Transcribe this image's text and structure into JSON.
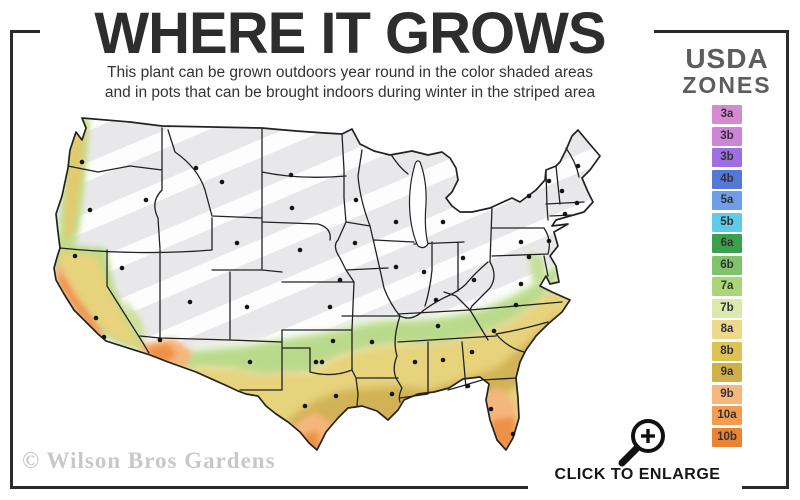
{
  "header": {
    "title": "WHERE IT GROWS",
    "subtitle_line1": "This plant can be grown outdoors year round in the color shaded areas",
    "subtitle_line2": "and in pots that can be brought indoors during winter in the striped area"
  },
  "legend": {
    "title_line1": "USDA",
    "title_line2": "ZONES",
    "zones": [
      {
        "label": "3a",
        "color": "#d489d0"
      },
      {
        "label": "3b",
        "color": "#cd85da"
      },
      {
        "label": "3b",
        "color": "#9e6fe2"
      },
      {
        "label": "4b",
        "color": "#5478d8"
      },
      {
        "label": "5a",
        "color": "#6f9de8"
      },
      {
        "label": "5b",
        "color": "#5fcbe8"
      },
      {
        "label": "6a",
        "color": "#3aa04b"
      },
      {
        "label": "6b",
        "color": "#7fc46d"
      },
      {
        "label": "7a",
        "color": "#abd678"
      },
      {
        "label": "7b",
        "color": "#dce9ae"
      },
      {
        "label": "8a",
        "color": "#eed88c"
      },
      {
        "label": "8b",
        "color": "#dfc254"
      },
      {
        "label": "9a",
        "color": "#cfb148"
      },
      {
        "label": "9b",
        "color": "#f6b77e"
      },
      {
        "label": "10a",
        "color": "#f29d52"
      },
      {
        "label": "10b",
        "color": "#ea8434"
      }
    ]
  },
  "map": {
    "colors": {
      "base_gray": "#e8e8ea",
      "stripe_white": "#ffffff",
      "state_border": "#222222",
      "zone_green": "#b9da8b",
      "zone_yellow": "#e6d37c",
      "zone_gold": "#d2b257",
      "zone_peach": "#f5b67e",
      "zone_orange": "#ee9045"
    }
  },
  "footer": {
    "watermark": "© Wilson Bros Gardens",
    "cta_label": "CLICK TO ENLARGE"
  }
}
